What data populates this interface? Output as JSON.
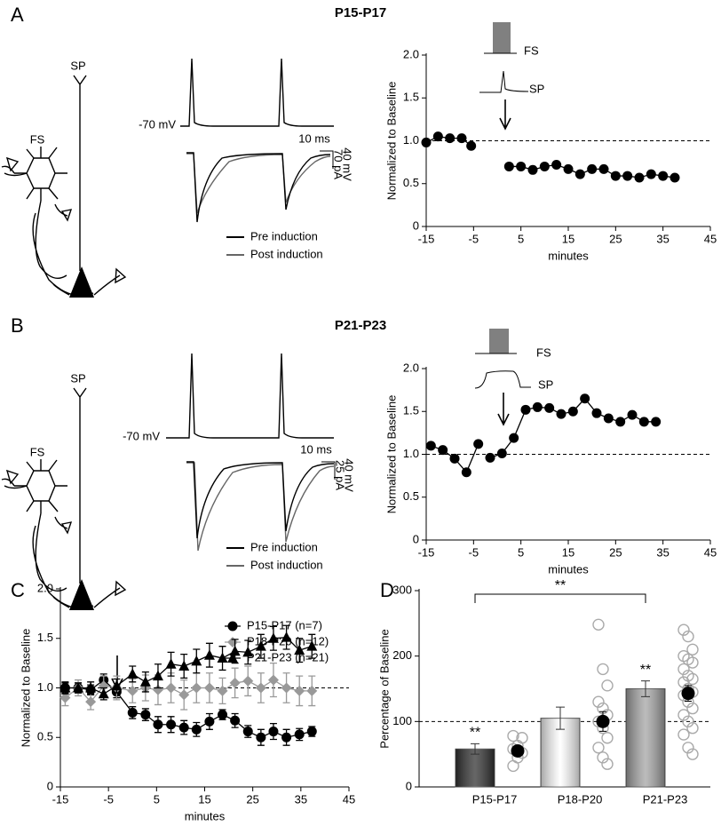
{
  "panels": [
    {
      "schematic_labels": [
        "SP",
        "FS"
      ],
      "voltage": "-70 mV",
      "time_scale": "10 ms",
      "voltage_scale": "40 mV",
      "current_scale": "70 pA",
      "legend": [
        "Pre induction",
        "Post induction"
      ]
    },
    {
      "schematic_labels": [
        "SP",
        "FS"
      ],
      "voltage": "-70 mV",
      "time_scale": "10 ms",
      "voltage_scale": "40 mV",
      "current_scale": "25 pA",
      "legend": [
        "Pre induction",
        "Post induction"
      ]
    }
  ],
  "chart_data": [
    {
      "type": "line",
      "panel_label": "A",
      "title": "P15-P17",
      "xlabel": "minutes",
      "ylabel": "Normalized to Baseline",
      "inset_labels": [
        "FS",
        "SP"
      ],
      "series": [
        {
          "color": "#000000",
          "x": [
            -15,
            -12.5,
            -10,
            -7.5,
            -5.5
          ],
          "values": [
            0.98,
            1.05,
            1.03,
            1.03,
            0.94
          ]
        },
        {
          "color": "#000000",
          "x": [
            2.5,
            5,
            7.5,
            10,
            12.5,
            15,
            17.5,
            20,
            22.5,
            25,
            27.5,
            30,
            32.5,
            35,
            37.5
          ],
          "values": [
            0.7,
            0.7,
            0.66,
            0.7,
            0.72,
            0.67,
            0.61,
            0.67,
            0.67,
            0.59,
            0.59,
            0.57,
            0.61,
            0.59,
            0.57
          ]
        }
      ],
      "reference_line": 1,
      "xlim": [
        -15,
        45
      ],
      "xticks": [
        -15,
        -5,
        5,
        15,
        25,
        35,
        45
      ],
      "ylim": [
        0,
        2
      ],
      "yticks": [
        0,
        0.5,
        {
          "value": 1,
          "label": "1.0"
        },
        1.5,
        {
          "value": 2,
          "label": "2.0"
        }
      ]
    },
    {
      "type": "line",
      "panel_label": "B",
      "title": "P21-P23",
      "xlabel": "minutes",
      "ylabel": "Normalized to Baseline",
      "inset_labels": [
        "FS",
        "SP"
      ],
      "series": [
        {
          "color": "#000000",
          "x": [
            -14,
            -11.5,
            -9,
            -6.5,
            -4
          ],
          "values": [
            1.1,
            1.05,
            0.95,
            0.79,
            1.12
          ]
        },
        {
          "color": "#000000",
          "x": [
            -1.5,
            1,
            3.5,
            6,
            8.5,
            11,
            13.5,
            16,
            18.5,
            21,
            23.5,
            26,
            28.5,
            31,
            33.5
          ],
          "values": [
            0.96,
            1.01,
            1.19,
            1.52,
            1.55,
            1.54,
            1.47,
            1.5,
            1.65,
            1.48,
            1.42,
            1.38,
            1.46,
            1.38,
            1.38
          ]
        }
      ],
      "reference_line": 1,
      "xlim": [
        -15,
        45
      ],
      "xticks": [
        -15,
        -5,
        5,
        15,
        25,
        35,
        45
      ],
      "ylim": [
        0,
        2
      ],
      "yticks": [
        0,
        0.5,
        {
          "value": 1,
          "label": "1.0"
        },
        1.5,
        {
          "value": 2,
          "label": "2.0"
        }
      ]
    },
    {
      "type": "line",
      "panel_label": "C",
      "xlabel": "minutes",
      "ylabel": "Normalized to Baseline",
      "legend": "top-right",
      "x": [
        -14,
        -11.3,
        -8.7,
        -6,
        -3.3,
        0,
        2.7,
        5.3,
        8,
        10.7,
        13.3,
        16,
        18.7,
        21.3,
        24,
        26.7,
        29.3,
        32,
        34.7,
        37.3
      ],
      "series": [
        {
          "name": "P15-P17 (n=7)",
          "color": "#000000",
          "marker": "circle",
          "values": [
            1.0,
            1.0,
            0.98,
            1.08,
            0.96,
            0.75,
            0.73,
            0.63,
            0.63,
            0.6,
            0.58,
            0.66,
            0.73,
            0.67,
            0.56,
            0.5,
            0.56,
            0.5,
            0.53,
            0.56
          ],
          "errors": [
            0.05,
            0.05,
            0.05,
            0.06,
            0.06,
            0.06,
            0.06,
            0.08,
            0.08,
            0.07,
            0.07,
            0.08,
            0.05,
            0.07,
            0.06,
            0.08,
            0.08,
            0.08,
            0.06,
            0.05
          ]
        },
        {
          "name": "P18-P20 (n=12)",
          "color": "#999999",
          "marker": "diamond",
          "values": [
            0.9,
            1.0,
            0.86,
            1.02,
            1.0,
            0.97,
            1.0,
            0.98,
            1.0,
            0.93,
            1.0,
            1.0,
            0.97,
            1.05,
            1.07,
            1.0,
            1.08,
            1.0,
            0.97,
            0.97
          ],
          "errors": [
            0.08,
            0.08,
            0.08,
            0.1,
            0.12,
            0.12,
            0.13,
            0.15,
            0.15,
            0.15,
            0.15,
            0.15,
            0.13,
            0.15,
            0.15,
            0.15,
            0.17,
            0.15,
            0.15,
            0.15
          ]
        },
        {
          "name": "P21-P23 (n=21)",
          "color": "#000000",
          "marker": "triangle",
          "values": [
            1.0,
            1.0,
            1.0,
            0.94,
            1.02,
            1.14,
            1.06,
            1.12,
            1.24,
            1.22,
            1.27,
            1.33,
            1.3,
            1.37,
            1.36,
            1.42,
            1.5,
            1.51,
            1.38,
            1.42
          ],
          "errors": [
            0.06,
            0.05,
            0.06,
            0.06,
            0.07,
            0.08,
            0.1,
            0.12,
            0.12,
            0.12,
            0.12,
            0.12,
            0.12,
            0.12,
            0.12,
            0.12,
            0.12,
            0.12,
            0.12,
            0.12
          ]
        }
      ],
      "reference_line": 1,
      "xlim": [
        -15,
        45
      ],
      "xticks": [
        -15,
        -5,
        5,
        15,
        25,
        35,
        45
      ],
      "ylim": [
        0,
        2
      ],
      "yticks": [
        0,
        0.5,
        {
          "value": 1,
          "label": "1.0"
        },
        1.5,
        {
          "value": 2,
          "label": "2.0"
        }
      ]
    },
    {
      "type": "bar",
      "panel_label": "D",
      "ylabel": "Percentage of Baseline",
      "categories": [
        "P15-P17",
        "P18-P20",
        "P21-P23"
      ],
      "values": [
        58,
        105,
        150
      ],
      "errors": [
        8,
        17,
        12
      ],
      "colors": [
        "#333333",
        "#ffffff",
        "#a6a6a6"
      ],
      "individual": [
        [
          32,
          45,
          52,
          58,
          63,
          75,
          78
        ],
        [
          248,
          180,
          155,
          130,
          120,
          110,
          100,
          90,
          75,
          60,
          45,
          35
        ],
        [
          240,
          230,
          210,
          200,
          195,
          190,
          180,
          170,
          165,
          160,
          150,
          145,
          140,
          130,
          120,
          110,
          100,
          90,
          80,
          60,
          50
        ]
      ],
      "individual_mean": [
        55,
        100,
        143
      ],
      "individual_mean_errors": [
        8,
        15,
        12
      ],
      "bar_annotations": [
        "**",
        null,
        "**"
      ],
      "significance_bracket": "**",
      "reference_line": 100,
      "ylim": [
        0,
        300
      ],
      "yticks": [
        0,
        100,
        200,
        300
      ]
    }
  ]
}
